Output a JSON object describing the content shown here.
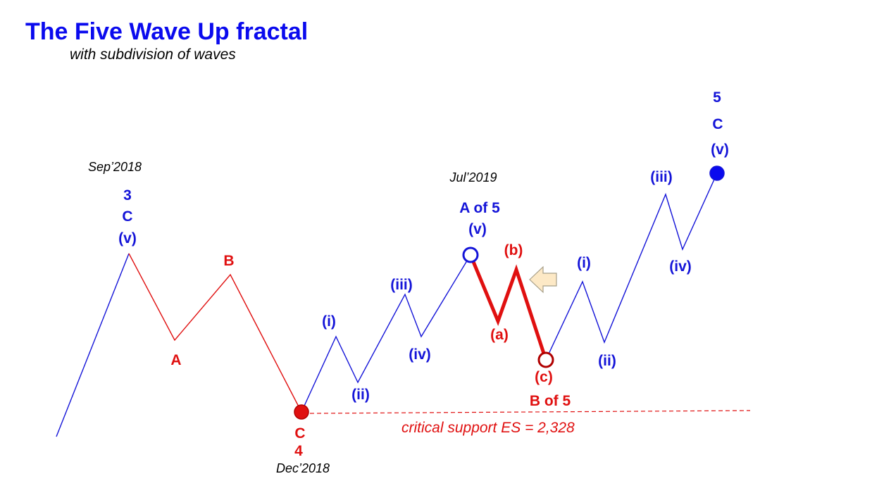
{
  "title": "The Five Wave Up fractal",
  "subtitle": "with subdivision of waves",
  "colors": {
    "blue": "#1414d8",
    "red": "#e01010",
    "dark_red": "#b00000",
    "title_blue": "#0a0aee",
    "arrow_fill": "#fde9c6",
    "arrow_stroke": "#a8a08a"
  },
  "dates": {
    "sep2018": "Sep’2018",
    "dec2018": "Dec’2018",
    "jul2019": "Jul’2019"
  },
  "support": {
    "label": "critical support ES = 2,328"
  },
  "labels": {
    "w3": "3",
    "w3_c": "C",
    "w3_v": "(v)",
    "corr_a": "A",
    "corr_b": "B",
    "w4_c": "C",
    "w4": "4",
    "sub_i": "(i)",
    "sub_ii": "(ii)",
    "sub_iii": "(iii)",
    "sub_iv": "(iv)",
    "a_of_5": "A of 5",
    "a_of_5_v": "(v)",
    "red_a": "(a)",
    "red_b": "(b)",
    "red_c": "(c)",
    "b_of_5": "B of 5",
    "c_i": "(i)",
    "c_ii": "(ii)",
    "c_iii": "(iii)",
    "c_iv": "(iv)",
    "w5": "5",
    "w5_c": "C",
    "w5_v": "(v)"
  },
  "icons": {
    "arrow": "left-arrow-icon"
  }
}
